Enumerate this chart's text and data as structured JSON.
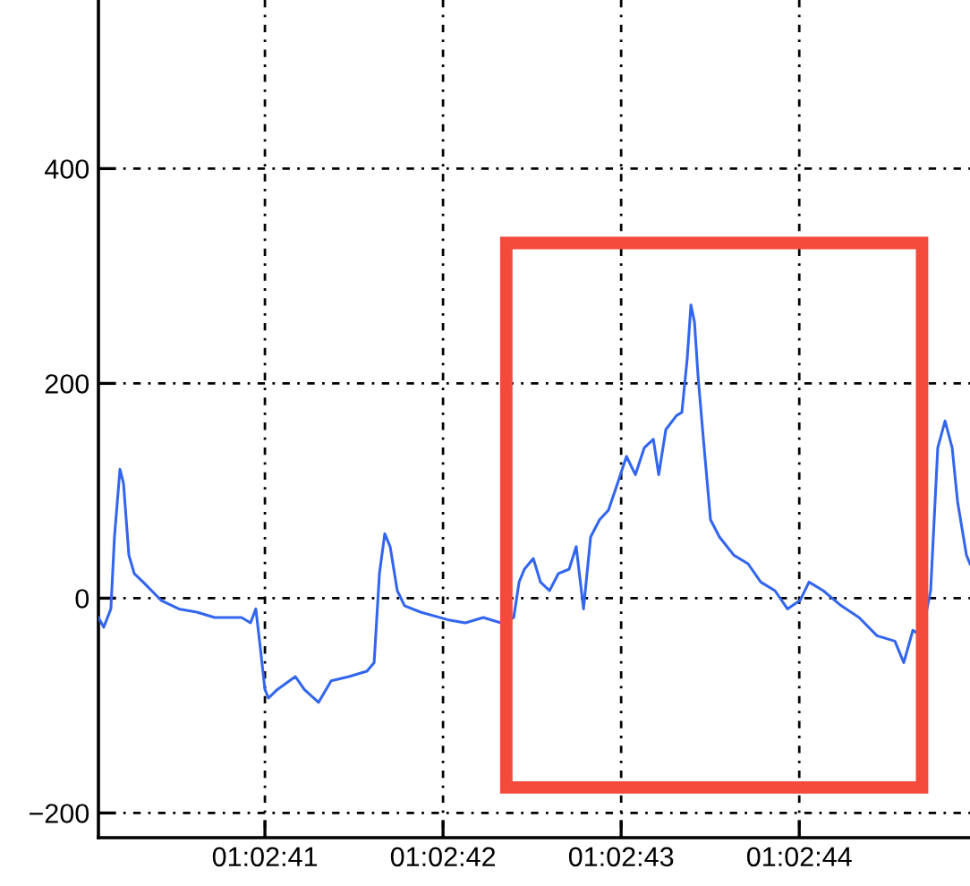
{
  "chart_data": {
    "type": "line",
    "color": "#3366ee",
    "x": [
      1.0444625,
      1.0444708,
      1.0444819,
      1.0444875,
      1.0444961,
      1.0445016,
      1.04451,
      1.0445183,
      1.0445322,
      1.0445602,
      1.044588,
      1.0446161,
      1.0446438,
      1.0446858,
      1.0446997,
      1.044708,
      1.0447138,
      1.0447222,
      1.0447277,
      1.0447416,
      1.0447697,
      1.0447836,
      1.0448058,
      1.0448255,
      1.0448533,
      1.0448813,
      1.0448925,
      1.0449008,
      1.0449091,
      1.0449175,
      1.0449286,
      1.04494,
      1.044965,
      1.0450069,
      1.0450347,
      1.0450627,
      1.0450905,
      1.0451102,
      1.0451186,
      1.0451269,
      1.0451408,
      1.0451519,
      1.0451661,
      1.04518,
      1.0451966,
      1.0452077,
      1.0452191,
      1.0452302,
      1.0452441,
      1.045258,
      1.0452722,
      1.0452861,
      1.0453,
      1.0453138,
      1.045328,
      1.0453364,
      1.0453475,
      1.0453641,
      1.0453725,
      1.0453808,
      1.0453866,
      1.0453922,
      1.0453977,
      1.0454061,
      1.0454172,
      1.0454311,
      1.0454536,
      1.0454758,
      1.0454955,
      1.0455177,
      1.0455372,
      1.0455569,
      1.0455708,
      1.045593,
      1.0456211,
      1.0456488,
      1.0456769,
      1.0457047,
      1.0457186,
      1.0457327,
      1.0457466,
      1.0457605,
      1.0457716,
      1.045783,
      1.0457941,
      1.0458025,
      1.0458164,
      1.0458219
    ],
    "values": [
      -18,
      -27,
      -10,
      57,
      120,
      107,
      40,
      23,
      15,
      -2,
      -10,
      -13,
      -18,
      -18,
      -23,
      -10,
      -40,
      -85,
      -93,
      -85,
      -73,
      -85,
      -97,
      -77,
      -73,
      -68,
      -60,
      23,
      60,
      48,
      7,
      -7,
      -13,
      -20,
      -23,
      -18,
      -23,
      -18,
      15,
      27,
      37,
      15,
      7,
      23,
      27,
      48,
      -10,
      57,
      73,
      82,
      107,
      132,
      115,
      140,
      148,
      115,
      157,
      170,
      173,
      223,
      273,
      257,
      207,
      148,
      73,
      57,
      40,
      32,
      15,
      7,
      -10,
      -2,
      15,
      7,
      -7,
      -18,
      -35,
      -40,
      -60,
      -30,
      -35,
      7,
      140,
      165,
      140,
      90,
      40,
      32
    ],
    "xlim": [
      1.0444625,
      1.0458219
    ],
    "xticks": [
      {
        "value": 1.0447222,
        "label": "01:02:41"
      },
      {
        "value": 1.045,
        "label": "01:02:42"
      },
      {
        "value": 1.0452778,
        "label": "01:02:43"
      },
      {
        "value": 1.0455556,
        "label": "01:02:44"
      }
    ],
    "ylim": [
      -223,
      557
    ],
    "yticks": [
      {
        "value": -200,
        "label": "−200"
      },
      0,
      200,
      400
    ],
    "grid": true,
    "line_style": "solid",
    "marker": "none"
  }
}
